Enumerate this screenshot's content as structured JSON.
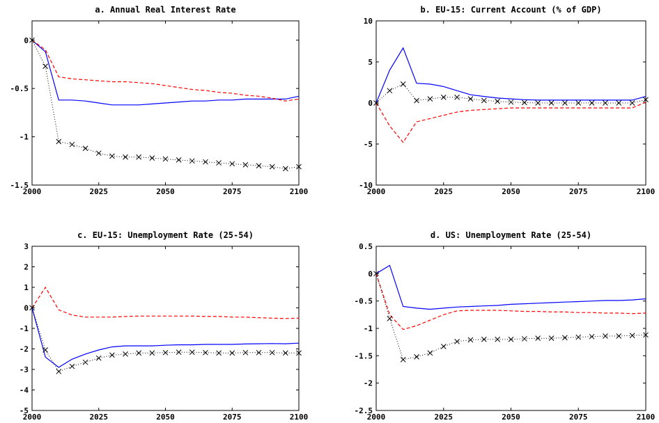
{
  "chart_data": [
    {
      "type": "line",
      "title": "a. Annual Real Interest Rate",
      "xlim": [
        2000,
        2100
      ],
      "ylim": [
        -1.5,
        0.2
      ],
      "xticks": [
        2000,
        2025,
        2050,
        2075,
        2100
      ],
      "yticks": [
        0,
        -0.5,
        -1,
        -1.5
      ],
      "xtick_labels": [
        "2000",
        "2025",
        "2050",
        "2075",
        "2100"
      ],
      "ytick_labels": [
        "0",
        "-0.5",
        "-1",
        "-1.5"
      ],
      "grid": false,
      "series": [
        {
          "style": "solid",
          "color": "#0000ff",
          "x": [
            2000,
            2005,
            2010,
            2015,
            2020,
            2025,
            2030,
            2035,
            2040,
            2045,
            2050,
            2055,
            2060,
            2065,
            2070,
            2075,
            2080,
            2085,
            2090,
            2095,
            2100
          ],
          "y": [
            0,
            -0.12,
            -0.62,
            -0.62,
            -0.63,
            -0.65,
            -0.67,
            -0.67,
            -0.67,
            -0.66,
            -0.65,
            -0.64,
            -0.63,
            -0.63,
            -0.62,
            -0.62,
            -0.61,
            -0.61,
            -0.61,
            -0.61,
            -0.58
          ]
        },
        {
          "style": "dashed",
          "color": "#ff0000",
          "x": [
            2000,
            2005,
            2010,
            2015,
            2020,
            2025,
            2030,
            2035,
            2040,
            2045,
            2050,
            2055,
            2060,
            2065,
            2070,
            2075,
            2080,
            2085,
            2090,
            2095,
            2100
          ],
          "y": [
            0,
            -0.1,
            -0.38,
            -0.4,
            -0.41,
            -0.42,
            -0.43,
            -0.43,
            -0.44,
            -0.45,
            -0.47,
            -0.49,
            -0.51,
            -0.52,
            -0.54,
            -0.55,
            -0.57,
            -0.58,
            -0.6,
            -0.63,
            -0.61
          ]
        },
        {
          "style": "dotted",
          "color": "#000000",
          "marker": "x",
          "x": [
            2000,
            2005,
            2010,
            2015,
            2020,
            2025,
            2030,
            2035,
            2040,
            2045,
            2050,
            2055,
            2060,
            2065,
            2070,
            2075,
            2080,
            2085,
            2090,
            2095,
            2100
          ],
          "y": [
            0,
            -0.27,
            -1.05,
            -1.08,
            -1.12,
            -1.17,
            -1.2,
            -1.21,
            -1.21,
            -1.22,
            -1.23,
            -1.24,
            -1.25,
            -1.26,
            -1.27,
            -1.28,
            -1.29,
            -1.3,
            -1.31,
            -1.33,
            -1.31
          ]
        }
      ]
    },
    {
      "type": "line",
      "title": "b. EU-15: Current Account (% of GDP)",
      "xlim": [
        2000,
        2100
      ],
      "ylim": [
        -10,
        10
      ],
      "xticks": [
        2000,
        2025,
        2050,
        2075,
        2100
      ],
      "yticks": [
        10,
        5,
        0,
        -5,
        -10
      ],
      "xtick_labels": [
        "2000",
        "2025",
        "2050",
        "2075",
        "2100"
      ],
      "ytick_labels": [
        "10",
        "5",
        "0",
        "-5",
        "-10"
      ],
      "grid": false,
      "series": [
        {
          "style": "solid",
          "color": "#0000ff",
          "x": [
            2000,
            2005,
            2010,
            2015,
            2020,
            2025,
            2030,
            2035,
            2040,
            2045,
            2050,
            2055,
            2060,
            2065,
            2070,
            2075,
            2080,
            2085,
            2090,
            2095,
            2100
          ],
          "y": [
            0,
            4.0,
            6.7,
            2.4,
            2.3,
            2.0,
            1.5,
            1.0,
            0.8,
            0.6,
            0.5,
            0.4,
            0.35,
            0.35,
            0.35,
            0.35,
            0.35,
            0.35,
            0.35,
            0.35,
            0.8
          ]
        },
        {
          "style": "dashed",
          "color": "#ff0000",
          "x": [
            2000,
            2005,
            2010,
            2015,
            2020,
            2025,
            2030,
            2035,
            2040,
            2045,
            2050,
            2055,
            2060,
            2065,
            2070,
            2075,
            2080,
            2085,
            2090,
            2095,
            2100
          ],
          "y": [
            0,
            -2.8,
            -4.8,
            -2.3,
            -1.9,
            -1.5,
            -1.1,
            -0.9,
            -0.8,
            -0.7,
            -0.6,
            -0.6,
            -0.6,
            -0.6,
            -0.6,
            -0.6,
            -0.6,
            -0.6,
            -0.6,
            -0.6,
            0.1
          ]
        },
        {
          "style": "dotted",
          "color": "#000000",
          "marker": "x",
          "x": [
            2000,
            2005,
            2010,
            2015,
            2020,
            2025,
            2030,
            2035,
            2040,
            2045,
            2050,
            2055,
            2060,
            2065,
            2070,
            2075,
            2080,
            2085,
            2090,
            2095,
            2100
          ],
          "y": [
            0,
            1.5,
            2.3,
            0.3,
            0.5,
            0.7,
            0.7,
            0.5,
            0.3,
            0.2,
            0.1,
            0.05,
            0,
            0,
            0,
            0,
            0,
            0,
            0,
            0,
            0.4
          ]
        }
      ]
    },
    {
      "type": "line",
      "title": "c. EU-15: Unemployment Rate (25-54)",
      "xlim": [
        2000,
        2100
      ],
      "ylim": [
        -5,
        3
      ],
      "xticks": [
        2000,
        2025,
        2050,
        2075,
        2100
      ],
      "yticks": [
        3,
        2,
        1,
        0,
        -1,
        -2,
        -3,
        -4,
        -5
      ],
      "xtick_labels": [
        "2000",
        "2025",
        "2050",
        "2075",
        "2100"
      ],
      "ytick_labels": [
        "3",
        "2",
        "1",
        "0",
        "-1",
        "-2",
        "-3",
        "-4",
        "-5"
      ],
      "grid": false,
      "series": [
        {
          "style": "solid",
          "color": "#0000ff",
          "x": [
            2000,
            2005,
            2010,
            2015,
            2020,
            2025,
            2030,
            2035,
            2040,
            2045,
            2050,
            2055,
            2060,
            2065,
            2070,
            2075,
            2080,
            2085,
            2090,
            2095,
            2100
          ],
          "y": [
            0,
            -2.4,
            -2.9,
            -2.5,
            -2.25,
            -2.05,
            -1.9,
            -1.85,
            -1.85,
            -1.85,
            -1.82,
            -1.8,
            -1.8,
            -1.78,
            -1.78,
            -1.78,
            -1.76,
            -1.75,
            -1.74,
            -1.75,
            -1.72
          ]
        },
        {
          "style": "dashed",
          "color": "#ff0000",
          "x": [
            2000,
            2005,
            2010,
            2015,
            2020,
            2025,
            2030,
            2035,
            2040,
            2045,
            2050,
            2055,
            2060,
            2065,
            2070,
            2075,
            2080,
            2085,
            2090,
            2095,
            2100
          ],
          "y": [
            0,
            1.0,
            -0.1,
            -0.35,
            -0.45,
            -0.45,
            -0.45,
            -0.42,
            -0.4,
            -0.4,
            -0.4,
            -0.4,
            -0.4,
            -0.42,
            -0.42,
            -0.45,
            -0.45,
            -0.48,
            -0.5,
            -0.52,
            -0.5
          ]
        },
        {
          "style": "dotted",
          "color": "#000000",
          "marker": "x",
          "x": [
            2000,
            2005,
            2010,
            2015,
            2020,
            2025,
            2030,
            2035,
            2040,
            2045,
            2050,
            2055,
            2060,
            2065,
            2070,
            2075,
            2080,
            2085,
            2090,
            2095,
            2100
          ],
          "y": [
            0,
            -2.05,
            -3.1,
            -2.85,
            -2.65,
            -2.45,
            -2.3,
            -2.25,
            -2.2,
            -2.2,
            -2.18,
            -2.16,
            -2.16,
            -2.18,
            -2.2,
            -2.2,
            -2.18,
            -2.18,
            -2.18,
            -2.2,
            -2.2
          ]
        }
      ]
    },
    {
      "type": "line",
      "title": "d. US: Unemployment Rate (25-54)",
      "xlim": [
        2000,
        2100
      ],
      "ylim": [
        -2.5,
        0.5
      ],
      "xticks": [
        2000,
        2025,
        2050,
        2075,
        2100
      ],
      "yticks": [
        0.5,
        0,
        -0.5,
        -1,
        -1.5,
        -2,
        -2.5
      ],
      "xtick_labels": [
        "2000",
        "2025",
        "2050",
        "2075",
        "2100"
      ],
      "ytick_labels": [
        "0.5",
        "0",
        "-0.5",
        "-1",
        "-1.5",
        "-2",
        "-2.5"
      ],
      "grid": false,
      "series": [
        {
          "style": "solid",
          "color": "#0000ff",
          "x": [
            2000,
            2005,
            2010,
            2015,
            2020,
            2025,
            2030,
            2035,
            2040,
            2045,
            2050,
            2055,
            2060,
            2065,
            2070,
            2075,
            2080,
            2085,
            2090,
            2095,
            2100
          ],
          "y": [
            0,
            0.15,
            -0.6,
            -0.63,
            -0.65,
            -0.63,
            -0.61,
            -0.6,
            -0.59,
            -0.58,
            -0.56,
            -0.55,
            -0.54,
            -0.53,
            -0.52,
            -0.51,
            -0.5,
            -0.49,
            -0.49,
            -0.48,
            -0.46
          ]
        },
        {
          "style": "dashed",
          "color": "#ff0000",
          "x": [
            2000,
            2005,
            2010,
            2015,
            2020,
            2025,
            2030,
            2035,
            2040,
            2045,
            2050,
            2055,
            2060,
            2065,
            2070,
            2075,
            2080,
            2085,
            2090,
            2095,
            2100
          ],
          "y": [
            0,
            -0.75,
            -1.02,
            -0.95,
            -0.85,
            -0.75,
            -0.68,
            -0.67,
            -0.67,
            -0.67,
            -0.68,
            -0.69,
            -0.69,
            -0.7,
            -0.7,
            -0.71,
            -0.71,
            -0.72,
            -0.72,
            -0.73,
            -0.72
          ]
        },
        {
          "style": "dotted",
          "color": "#000000",
          "marker": "x",
          "x": [
            2000,
            2005,
            2010,
            2015,
            2020,
            2025,
            2030,
            2035,
            2040,
            2045,
            2050,
            2055,
            2060,
            2065,
            2070,
            2075,
            2080,
            2085,
            2090,
            2095,
            2100
          ],
          "y": [
            0,
            -0.82,
            -1.57,
            -1.52,
            -1.45,
            -1.33,
            -1.24,
            -1.21,
            -1.2,
            -1.2,
            -1.2,
            -1.19,
            -1.18,
            -1.18,
            -1.17,
            -1.16,
            -1.15,
            -1.14,
            -1.14,
            -1.13,
            -1.12
          ]
        }
      ]
    }
  ]
}
